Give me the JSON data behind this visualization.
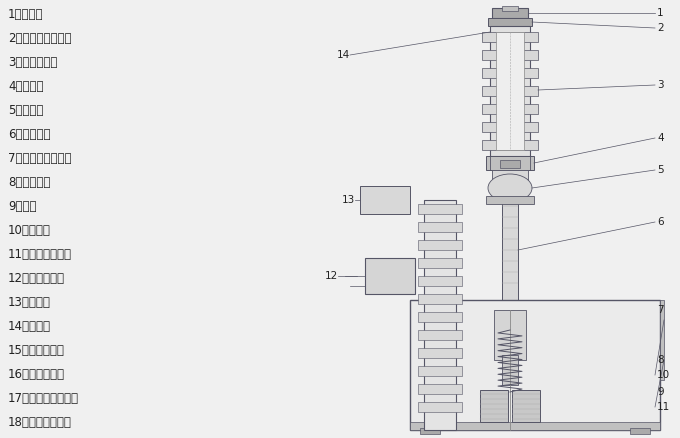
{
  "background_color": "#f0f0f0",
  "left_labels": [
    "1、上出线",
    "2、上支柱绝缘套筒",
    "3、真空灭弧宣",
    "4、导电夹",
    "5、软连接",
    "6、绝缘拉杆",
    "7、下支柱绝缘套筒",
    "8、压缩弹簧",
    "9、吊耳",
    "10、机构箱",
    "11、弹簧操动机构",
    "12、电流互感器",
    "13、下出线",
    "14、绝缘胶",
    "15、合分操作杆",
    "16、储能操作杆",
    "17、开关状态显示器",
    "18、二次控制插座"
  ],
  "text_color": "#222222",
  "label_fontsize": 8.5,
  "line_color": "#555566",
  "line_width": 0.7,
  "fill_light": "#d8d8d8",
  "fill_mid": "#c0c0c0",
  "fill_dark": "#aaaaaa",
  "fill_bg": "#e8e8e8"
}
